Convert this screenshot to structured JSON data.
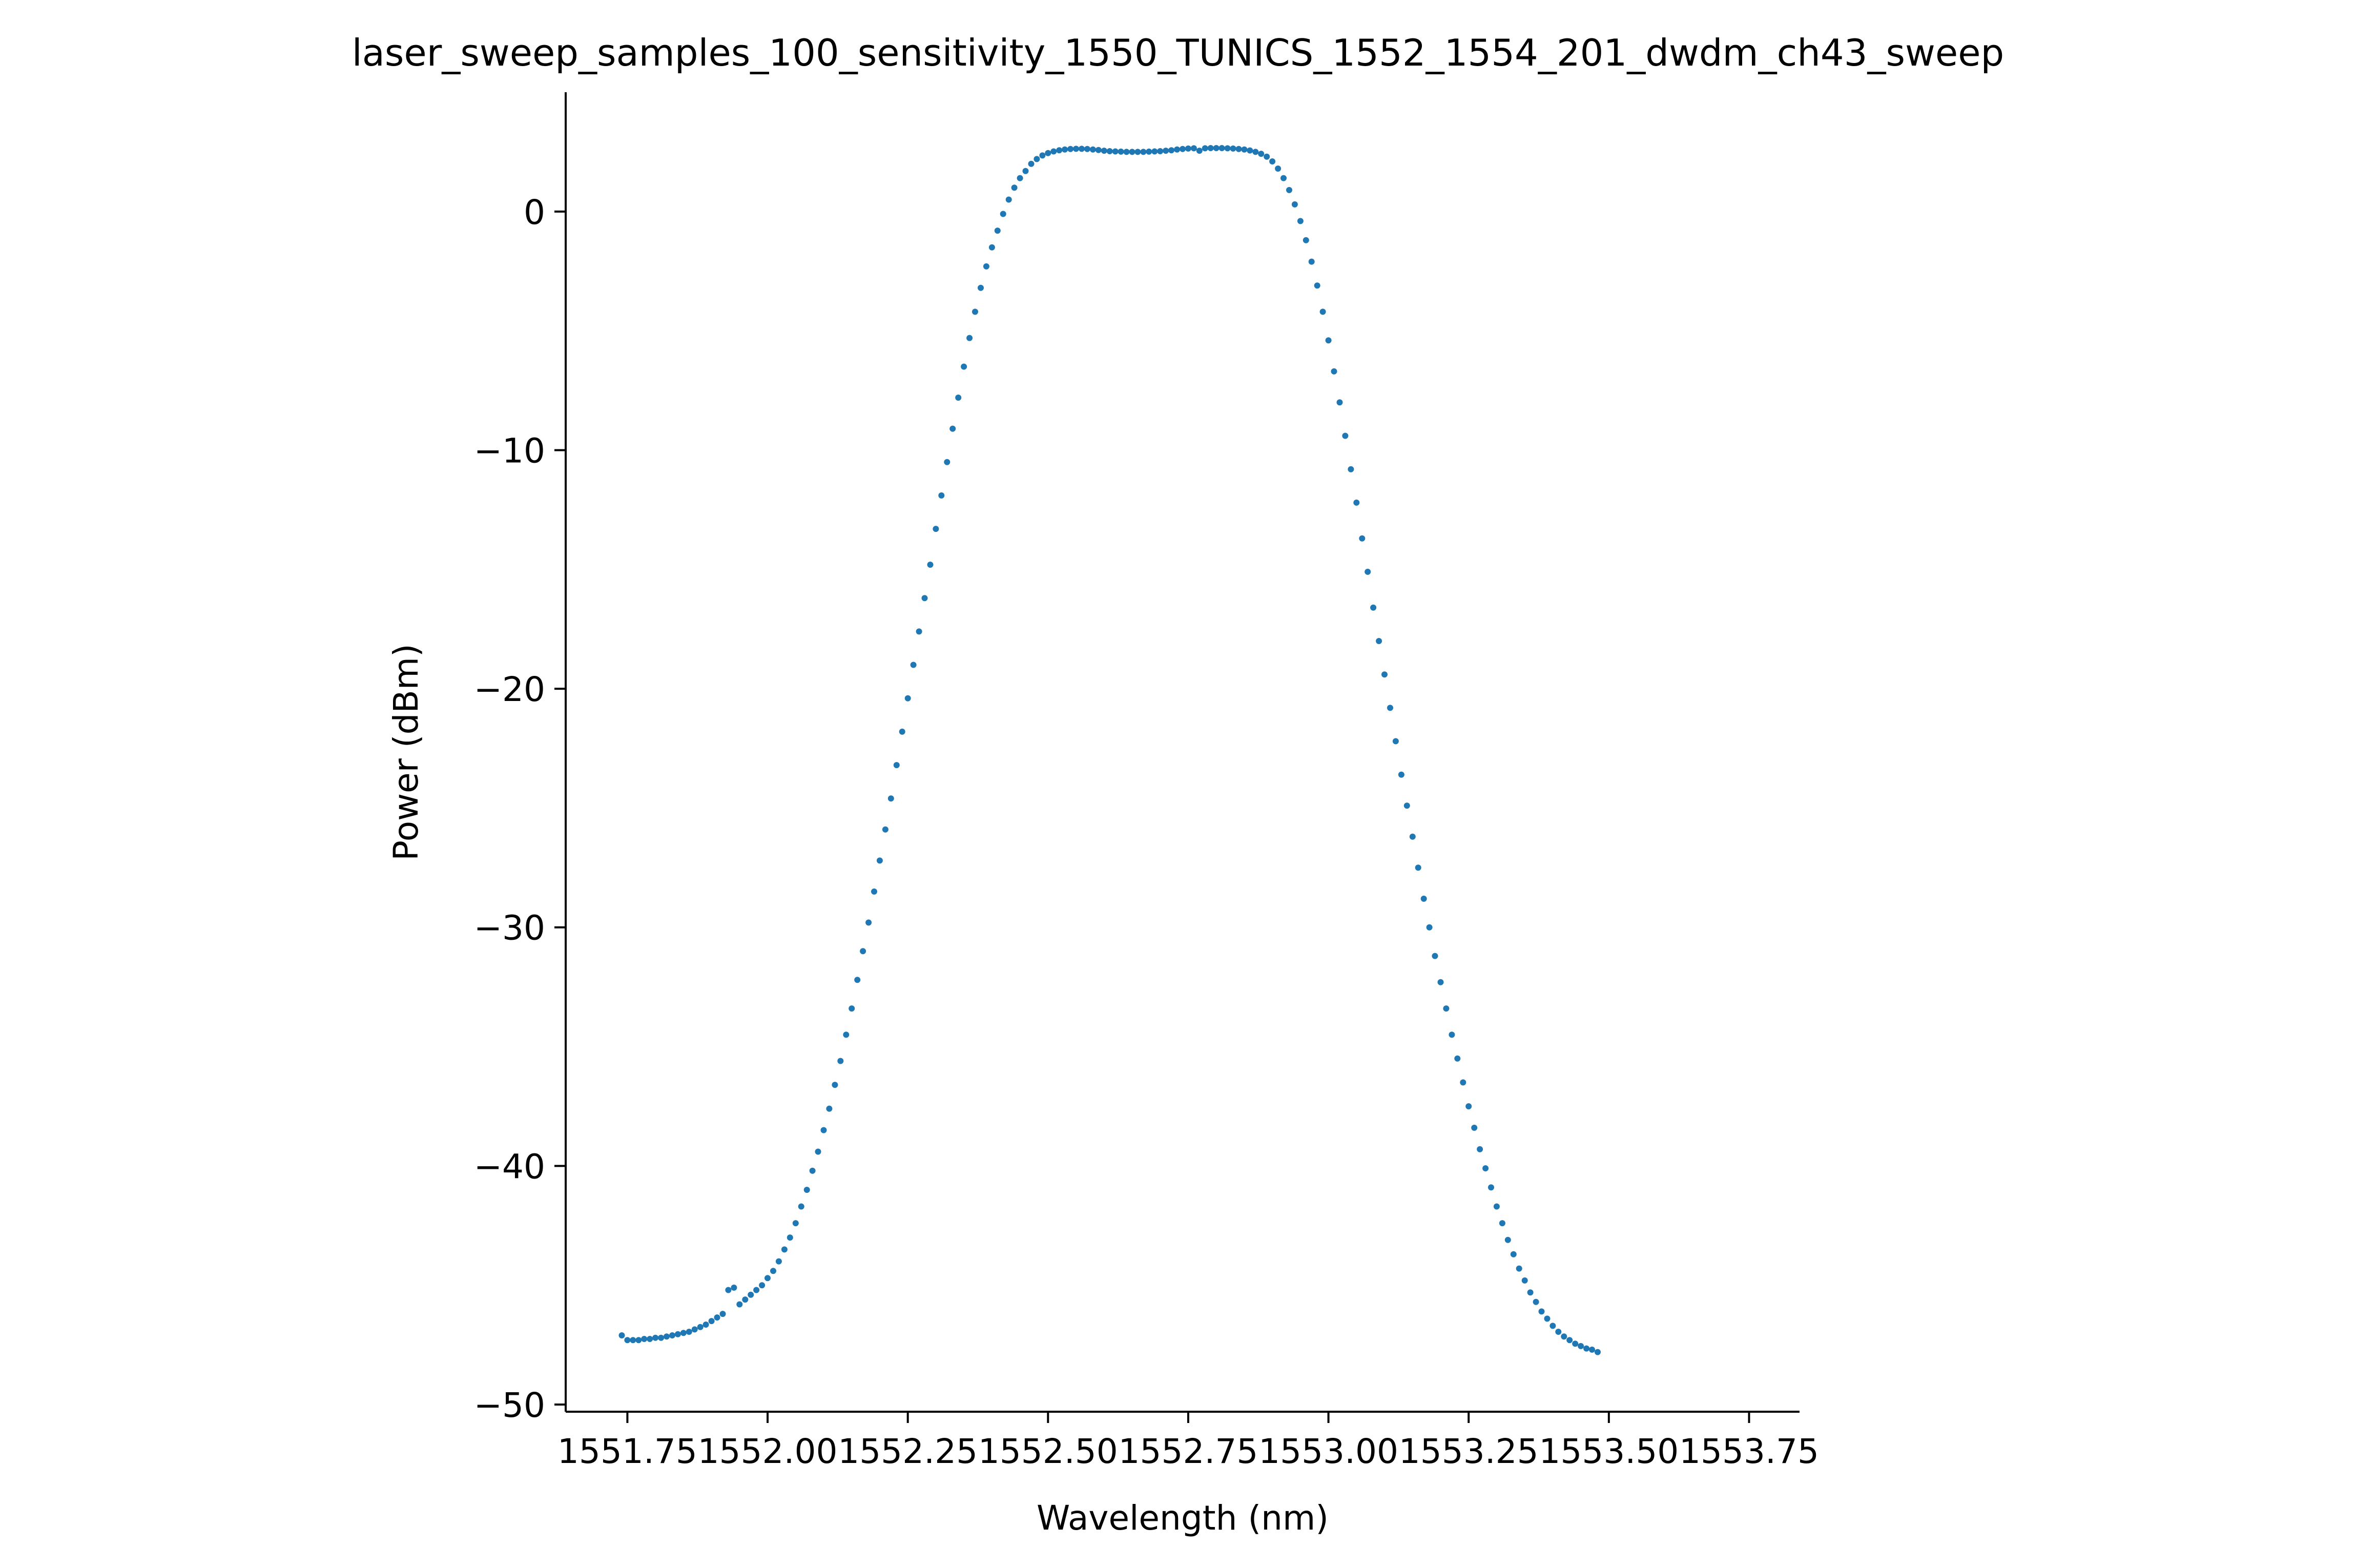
{
  "chart_data": {
    "type": "scatter",
    "title": "laser_sweep_samples_100_sensitivity_1550_TUNICS_1552_1554_201_dwdm_ch43_sweep",
    "xlabel": "Wavelength (nm)",
    "ylabel": "Power (dBm)",
    "xlim": [
      1551.64,
      1553.84
    ],
    "ylim": [
      -50.3,
      5.0
    ],
    "xticks": [
      1551.75,
      1552.0,
      1552.25,
      1552.5,
      1552.75,
      1553.0,
      1553.25,
      1553.5,
      1553.75
    ],
    "xtick_labels": [
      "1551.75",
      "1552.00",
      "1552.25",
      "1552.50",
      "1552.75",
      "1553.00",
      "1553.25",
      "1553.50",
      "1553.75"
    ],
    "yticks": [
      0,
      -10,
      -20,
      -30,
      -40,
      -50
    ],
    "ytick_labels": [
      "0",
      "−10",
      "−20",
      "−30",
      "−40",
      "−50"
    ],
    "grid": false,
    "marker_color": "#1f77b4",
    "series": [
      {
        "points": [
          [
            1551.74,
            -47.1
          ],
          [
            1551.75,
            -47.3
          ],
          [
            1551.76,
            -47.3
          ],
          [
            1551.77,
            -47.3
          ],
          [
            1551.78,
            -47.25
          ],
          [
            1551.79,
            -47.25
          ],
          [
            1551.8,
            -47.2
          ],
          [
            1551.81,
            -47.2
          ],
          [
            1551.82,
            -47.15
          ],
          [
            1551.83,
            -47.1
          ],
          [
            1551.84,
            -47.05
          ],
          [
            1551.85,
            -47.0
          ],
          [
            1551.86,
            -46.95
          ],
          [
            1551.87,
            -46.85
          ],
          [
            1551.88,
            -46.75
          ],
          [
            1551.89,
            -46.65
          ],
          [
            1551.9,
            -46.5
          ],
          [
            1551.91,
            -46.35
          ],
          [
            1551.92,
            -46.2
          ],
          [
            1551.93,
            -45.2
          ],
          [
            1551.94,
            -45.1
          ],
          [
            1551.95,
            -45.8
          ],
          [
            1551.96,
            -45.6
          ],
          [
            1551.97,
            -45.4
          ],
          [
            1551.98,
            -45.2
          ],
          [
            1551.99,
            -45.0
          ],
          [
            1552.0,
            -44.7
          ],
          [
            1552.01,
            -44.4
          ],
          [
            1552.02,
            -44.0
          ],
          [
            1552.03,
            -43.5
          ],
          [
            1552.04,
            -43.0
          ],
          [
            1552.05,
            -42.4
          ],
          [
            1552.06,
            -41.7
          ],
          [
            1552.07,
            -41.0
          ],
          [
            1552.08,
            -40.2
          ],
          [
            1552.09,
            -39.4
          ],
          [
            1552.1,
            -38.5
          ],
          [
            1552.11,
            -37.6
          ],
          [
            1552.12,
            -36.6
          ],
          [
            1552.13,
            -35.6
          ],
          [
            1552.14,
            -34.5
          ],
          [
            1552.15,
            -33.4
          ],
          [
            1552.16,
            -32.2
          ],
          [
            1552.17,
            -31.0
          ],
          [
            1552.18,
            -29.8
          ],
          [
            1552.19,
            -28.5
          ],
          [
            1552.2,
            -27.2
          ],
          [
            1552.21,
            -25.9
          ],
          [
            1552.22,
            -24.6
          ],
          [
            1552.23,
            -23.2
          ],
          [
            1552.24,
            -21.8
          ],
          [
            1552.25,
            -20.4
          ],
          [
            1552.26,
            -19.0
          ],
          [
            1552.27,
            -17.6
          ],
          [
            1552.28,
            -16.2
          ],
          [
            1552.29,
            -14.8
          ],
          [
            1552.3,
            -13.3
          ],
          [
            1552.31,
            -11.9
          ],
          [
            1552.32,
            -10.5
          ],
          [
            1552.33,
            -9.1
          ],
          [
            1552.34,
            -7.8
          ],
          [
            1552.35,
            -6.5
          ],
          [
            1552.36,
            -5.3
          ],
          [
            1552.37,
            -4.2
          ],
          [
            1552.38,
            -3.2
          ],
          [
            1552.39,
            -2.3
          ],
          [
            1552.4,
            -1.5
          ],
          [
            1552.41,
            -0.8
          ],
          [
            1552.42,
            -0.1
          ],
          [
            1552.43,
            0.5
          ],
          [
            1552.44,
            1.0
          ],
          [
            1552.45,
            1.4
          ],
          [
            1552.46,
            1.7
          ],
          [
            1552.47,
            2.0
          ],
          [
            1552.48,
            2.2
          ],
          [
            1552.49,
            2.35
          ],
          [
            1552.5,
            2.45
          ],
          [
            1552.51,
            2.52
          ],
          [
            1552.52,
            2.57
          ],
          [
            1552.53,
            2.6
          ],
          [
            1552.54,
            2.62
          ],
          [
            1552.55,
            2.63
          ],
          [
            1552.56,
            2.63
          ],
          [
            1552.57,
            2.62
          ],
          [
            1552.58,
            2.6
          ],
          [
            1552.59,
            2.58
          ],
          [
            1552.6,
            2.55
          ],
          [
            1552.61,
            2.53
          ],
          [
            1552.62,
            2.52
          ],
          [
            1552.63,
            2.51
          ],
          [
            1552.64,
            2.5
          ],
          [
            1552.65,
            2.5
          ],
          [
            1552.66,
            2.5
          ],
          [
            1552.67,
            2.5
          ],
          [
            1552.68,
            2.51
          ],
          [
            1552.69,
            2.52
          ],
          [
            1552.7,
            2.53
          ],
          [
            1552.71,
            2.55
          ],
          [
            1552.72,
            2.57
          ],
          [
            1552.73,
            2.6
          ],
          [
            1552.74,
            2.62
          ],
          [
            1552.75,
            2.64
          ],
          [
            1552.76,
            2.65
          ],
          [
            1552.77,
            2.55
          ],
          [
            1552.78,
            2.65
          ],
          [
            1552.79,
            2.66
          ],
          [
            1552.8,
            2.66
          ],
          [
            1552.81,
            2.66
          ],
          [
            1552.82,
            2.65
          ],
          [
            1552.83,
            2.64
          ],
          [
            1552.84,
            2.62
          ],
          [
            1552.85,
            2.6
          ],
          [
            1552.86,
            2.56
          ],
          [
            1552.87,
            2.5
          ],
          [
            1552.88,
            2.42
          ],
          [
            1552.89,
            2.3
          ],
          [
            1552.9,
            2.1
          ],
          [
            1552.91,
            1.8
          ],
          [
            1552.92,
            1.4
          ],
          [
            1552.93,
            0.9
          ],
          [
            1552.94,
            0.3
          ],
          [
            1552.95,
            -0.4
          ],
          [
            1552.96,
            -1.2
          ],
          [
            1552.97,
            -2.1
          ],
          [
            1552.98,
            -3.1
          ],
          [
            1552.99,
            -4.2
          ],
          [
            1553.0,
            -5.4
          ],
          [
            1553.01,
            -6.7
          ],
          [
            1553.02,
            -8.0
          ],
          [
            1553.03,
            -9.4
          ],
          [
            1553.04,
            -10.8
          ],
          [
            1553.05,
            -12.2
          ],
          [
            1553.06,
            -13.7
          ],
          [
            1553.07,
            -15.1
          ],
          [
            1553.08,
            -16.6
          ],
          [
            1553.09,
            -18.0
          ],
          [
            1553.1,
            -19.4
          ],
          [
            1553.11,
            -20.8
          ],
          [
            1553.12,
            -22.2
          ],
          [
            1553.13,
            -23.6
          ],
          [
            1553.14,
            -24.9
          ],
          [
            1553.15,
            -26.2
          ],
          [
            1553.16,
            -27.5
          ],
          [
            1553.17,
            -28.8
          ],
          [
            1553.18,
            -30.0
          ],
          [
            1553.19,
            -31.2
          ],
          [
            1553.2,
            -32.3
          ],
          [
            1553.21,
            -33.4
          ],
          [
            1553.22,
            -34.5
          ],
          [
            1553.23,
            -35.5
          ],
          [
            1553.24,
            -36.5
          ],
          [
            1553.25,
            -37.5
          ],
          [
            1553.26,
            -38.4
          ],
          [
            1553.27,
            -39.3
          ],
          [
            1553.28,
            -40.1
          ],
          [
            1553.29,
            -40.9
          ],
          [
            1553.3,
            -41.7
          ],
          [
            1553.31,
            -42.4
          ],
          [
            1553.32,
            -43.1
          ],
          [
            1553.33,
            -43.7
          ],
          [
            1553.34,
            -44.3
          ],
          [
            1553.35,
            -44.8
          ],
          [
            1553.36,
            -45.3
          ],
          [
            1553.37,
            -45.7
          ],
          [
            1553.38,
            -46.1
          ],
          [
            1553.39,
            -46.4
          ],
          [
            1553.4,
            -46.7
          ],
          [
            1553.41,
            -46.95
          ],
          [
            1553.42,
            -47.15
          ],
          [
            1553.43,
            -47.3
          ],
          [
            1553.44,
            -47.45
          ],
          [
            1553.45,
            -47.55
          ],
          [
            1553.46,
            -47.65
          ],
          [
            1553.47,
            -47.7
          ],
          [
            1553.48,
            -47.8
          ]
        ]
      }
    ]
  }
}
